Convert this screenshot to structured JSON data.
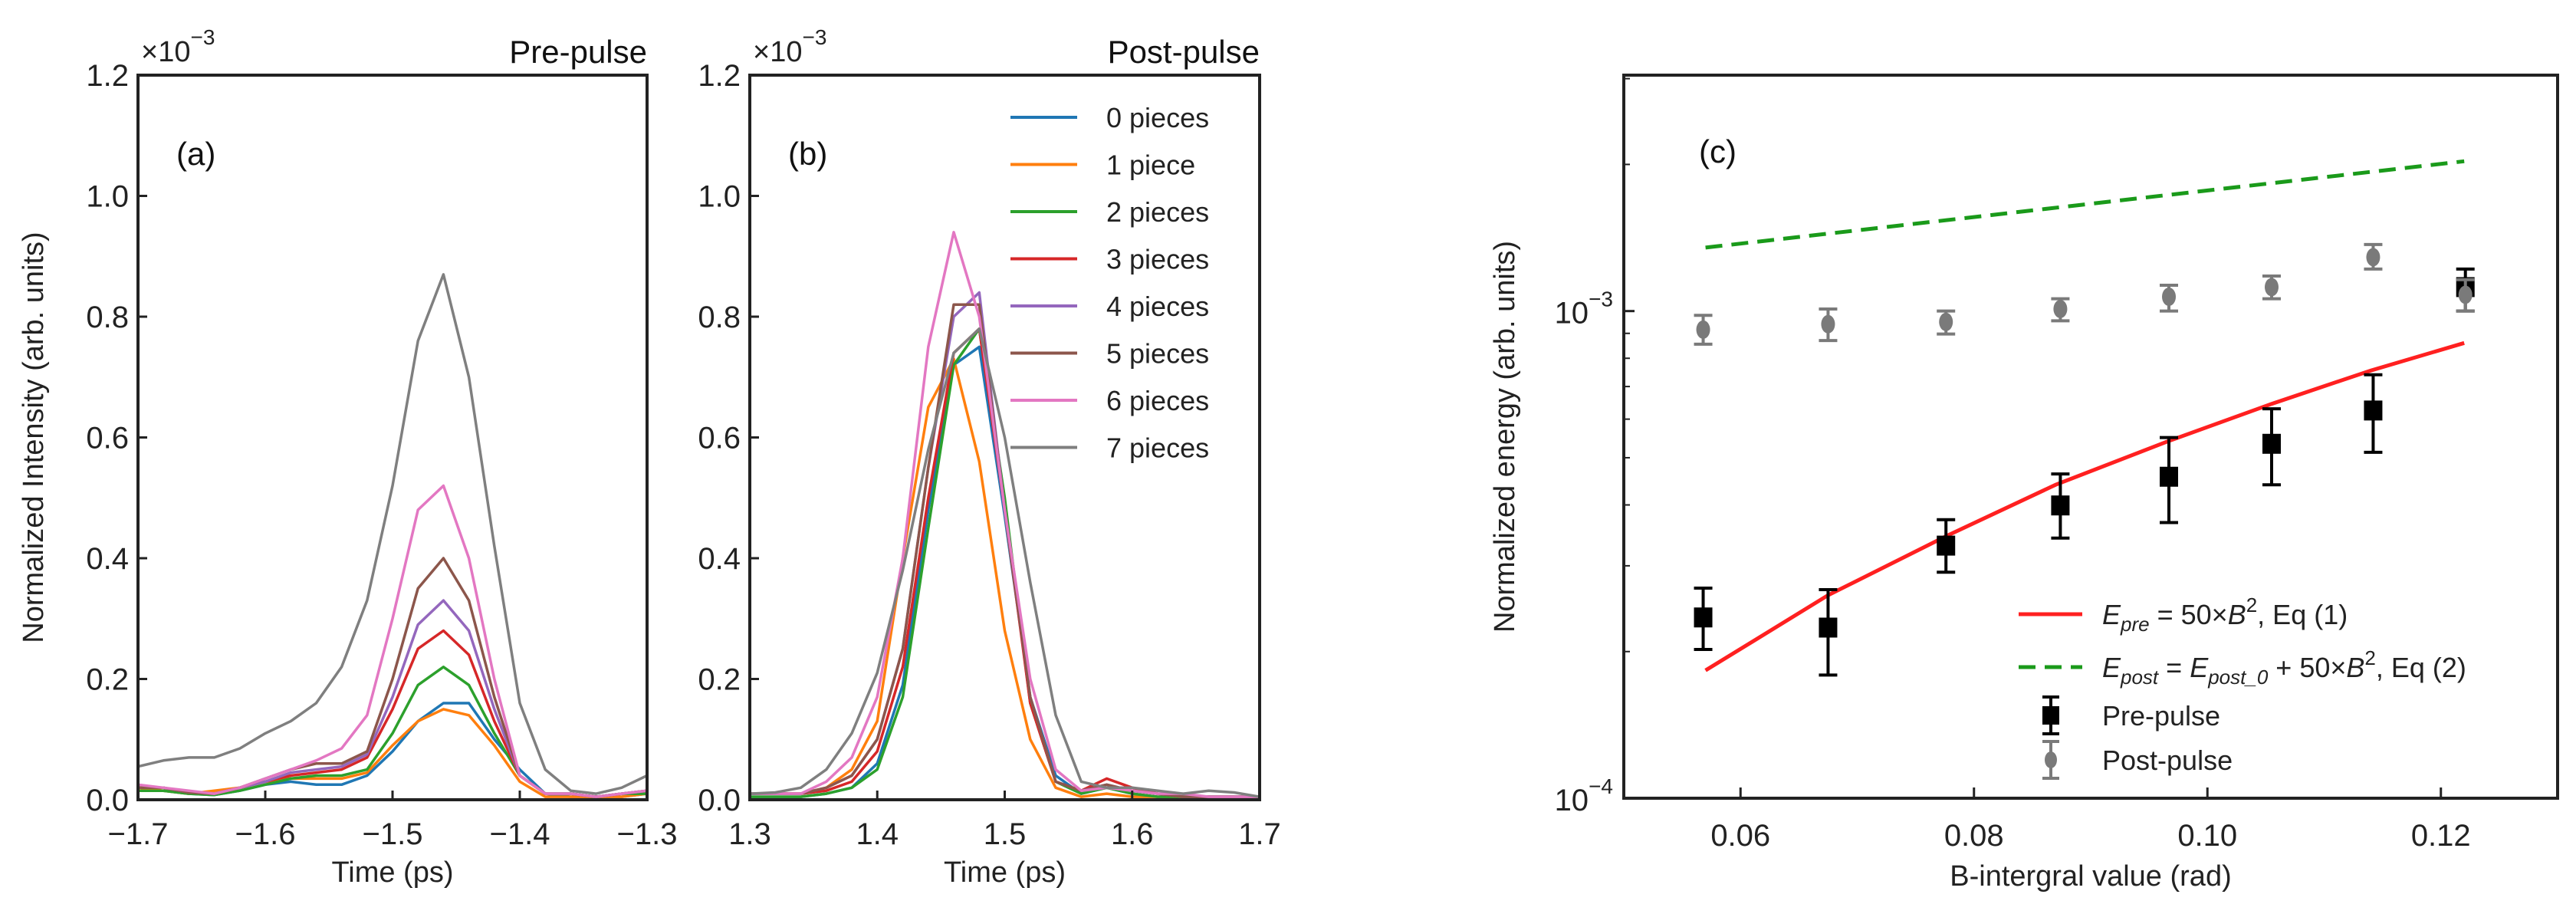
{
  "colors": {
    "blue": "#1f77b4",
    "orange": "#ff7f0e",
    "green": "#2ca02c",
    "red": "#d62728",
    "purple": "#9467bd",
    "brown": "#8c564b",
    "pink": "#e377c2",
    "gray": "#7f7f7f",
    "fit_red": "#ff2020",
    "fit_green": "#1a9a1a",
    "pre_marker": "#000000",
    "post_marker": "#7a7a7a"
  },
  "chart_data": [
    {
      "type": "line",
      "panel_label": "(a)",
      "title": "Pre-pulse",
      "scale_note": {
        "base": "×10",
        "exp": "−3"
      },
      "xlabel": "Time (ps)",
      "ylabel": "Normalized Intensity (arb. units)",
      "xlim": [
        -1.7,
        -1.3
      ],
      "ylim": [
        0,
        1.2
      ],
      "xticks": [
        "−1.7",
        "−1.6",
        "−1.5",
        "−1.4",
        "−1.3"
      ],
      "xtick_values": [
        -1.7,
        -1.6,
        -1.5,
        -1.4,
        -1.3
      ],
      "yticks": [
        "0.0",
        "0.2",
        "0.4",
        "0.6",
        "0.8",
        "1.0",
        "1.2"
      ],
      "ytick_values": [
        0,
        0.2,
        0.4,
        0.6,
        0.8,
        1.0,
        1.2
      ],
      "x": [
        -1.7,
        -1.68,
        -1.66,
        -1.64,
        -1.62,
        -1.6,
        -1.58,
        -1.56,
        -1.54,
        -1.52,
        -1.5,
        -1.48,
        -1.46,
        -1.44,
        -1.42,
        -1.4,
        -1.38,
        -1.36,
        -1.34,
        -1.32,
        -1.3
      ],
      "series": [
        {
          "name": "0 pieces",
          "color": "blue",
          "values": [
            0.015,
            0.015,
            0.01,
            0.008,
            0.015,
            0.025,
            0.03,
            0.025,
            0.025,
            0.04,
            0.08,
            0.13,
            0.16,
            0.16,
            0.1,
            0.05,
            0.01,
            0.005,
            0.005,
            0.005,
            0.01
          ]
        },
        {
          "name": "1 piece",
          "color": "orange",
          "values": [
            0.02,
            0.015,
            0.01,
            0.015,
            0.02,
            0.03,
            0.035,
            0.035,
            0.035,
            0.045,
            0.09,
            0.13,
            0.15,
            0.14,
            0.09,
            0.03,
            0.005,
            0.005,
            0.005,
            0.005,
            0.01
          ]
        },
        {
          "name": "2 pieces",
          "color": "green",
          "values": [
            0.015,
            0.015,
            0.01,
            0.008,
            0.015,
            0.025,
            0.035,
            0.04,
            0.04,
            0.05,
            0.11,
            0.19,
            0.22,
            0.19,
            0.11,
            0.04,
            0.01,
            0.01,
            0.005,
            0.01,
            0.01
          ]
        },
        {
          "name": "3 pieces",
          "color": "red",
          "values": [
            0.02,
            0.02,
            0.012,
            0.01,
            0.02,
            0.03,
            0.04,
            0.045,
            0.05,
            0.07,
            0.15,
            0.25,
            0.28,
            0.24,
            0.13,
            0.04,
            0.01,
            0.01,
            0.005,
            0.01,
            0.015
          ]
        },
        {
          "name": "4 pieces",
          "color": "purple",
          "values": [
            0.02,
            0.02,
            0.012,
            0.01,
            0.02,
            0.03,
            0.045,
            0.05,
            0.055,
            0.075,
            0.17,
            0.29,
            0.33,
            0.28,
            0.15,
            0.04,
            0.01,
            0.01,
            0.005,
            0.01,
            0.015
          ]
        },
        {
          "name": "5 pieces",
          "color": "brown",
          "values": [
            0.02,
            0.02,
            0.012,
            0.01,
            0.02,
            0.035,
            0.05,
            0.06,
            0.06,
            0.08,
            0.2,
            0.35,
            0.4,
            0.33,
            0.17,
            0.04,
            0.01,
            0.01,
            0.005,
            0.01,
            0.015
          ]
        },
        {
          "name": "6 pieces",
          "color": "pink",
          "values": [
            0.025,
            0.02,
            0.015,
            0.01,
            0.02,
            0.035,
            0.05,
            0.065,
            0.085,
            0.14,
            0.3,
            0.48,
            0.52,
            0.4,
            0.2,
            0.04,
            0.01,
            0.01,
            0.005,
            0.01,
            0.015
          ]
        },
        {
          "name": "7 pieces",
          "color": "gray",
          "values": [
            0.055,
            0.065,
            0.07,
            0.07,
            0.085,
            0.11,
            0.13,
            0.16,
            0.22,
            0.33,
            0.52,
            0.76,
            0.87,
            0.7,
            0.42,
            0.16,
            0.05,
            0.015,
            0.01,
            0.02,
            0.04
          ]
        }
      ]
    },
    {
      "type": "line",
      "panel_label": "(b)",
      "title": "Post-pulse",
      "scale_note": {
        "base": "×10",
        "exp": "−3"
      },
      "xlabel": "Time (ps)",
      "xlim": [
        1.3,
        1.7
      ],
      "ylim": [
        0,
        1.2
      ],
      "xticks": [
        "1.3",
        "1.4",
        "1.5",
        "1.6",
        "1.7"
      ],
      "xtick_values": [
        1.3,
        1.4,
        1.5,
        1.6,
        1.7
      ],
      "yticks": [
        "0.0",
        "0.2",
        "0.4",
        "0.6",
        "0.8",
        "1.0",
        "1.2"
      ],
      "ytick_values": [
        0,
        0.2,
        0.4,
        0.6,
        0.8,
        1.0,
        1.2
      ],
      "legend_position": "top-right",
      "x": [
        1.3,
        1.32,
        1.34,
        1.36,
        1.38,
        1.4,
        1.42,
        1.44,
        1.46,
        1.48,
        1.5,
        1.52,
        1.54,
        1.56,
        1.58,
        1.6,
        1.62,
        1.64,
        1.66,
        1.68,
        1.7
      ],
      "series": [
        {
          "name": "0 pieces",
          "color": "blue",
          "values": [
            0.005,
            0.005,
            0.005,
            0.01,
            0.02,
            0.06,
            0.19,
            0.48,
            0.72,
            0.75,
            0.47,
            0.17,
            0.04,
            0.01,
            0.02,
            0.01,
            0.005,
            0.005,
            0.005,
            0.005,
            0.005
          ]
        },
        {
          "name": "1 piece",
          "color": "orange",
          "values": [
            0.01,
            0.01,
            0.01,
            0.02,
            0.05,
            0.13,
            0.4,
            0.65,
            0.73,
            0.56,
            0.28,
            0.1,
            0.02,
            0.005,
            0.01,
            0.005,
            0.005,
            0.005,
            0.005,
            0.005,
            0.005
          ]
        },
        {
          "name": "2 pieces",
          "color": "green",
          "values": [
            0.005,
            0.005,
            0.005,
            0.01,
            0.02,
            0.05,
            0.17,
            0.45,
            0.72,
            0.78,
            0.5,
            0.16,
            0.03,
            0.01,
            0.02,
            0.01,
            0.005,
            0.005,
            0.005,
            0.005,
            0.005
          ]
        },
        {
          "name": "3 pieces",
          "color": "red",
          "values": [
            0.01,
            0.01,
            0.01,
            0.015,
            0.03,
            0.08,
            0.22,
            0.5,
            0.74,
            0.78,
            0.48,
            0.16,
            0.03,
            0.015,
            0.035,
            0.02,
            0.01,
            0.005,
            0.005,
            0.005,
            0.005
          ]
        },
        {
          "name": "4 pieces",
          "color": "purple",
          "values": [
            0.01,
            0.01,
            0.01,
            0.02,
            0.04,
            0.1,
            0.25,
            0.55,
            0.8,
            0.84,
            0.48,
            0.17,
            0.03,
            0.015,
            0.025,
            0.015,
            0.01,
            0.005,
            0.005,
            0.005,
            0.005
          ]
        },
        {
          "name": "5 pieces",
          "color": "brown",
          "values": [
            0.01,
            0.01,
            0.01,
            0.02,
            0.04,
            0.1,
            0.25,
            0.55,
            0.82,
            0.82,
            0.48,
            0.17,
            0.03,
            0.015,
            0.025,
            0.015,
            0.01,
            0.005,
            0.005,
            0.005,
            0.005
          ]
        },
        {
          "name": "6 pieces",
          "color": "pink",
          "values": [
            0.01,
            0.01,
            0.01,
            0.03,
            0.07,
            0.17,
            0.4,
            0.75,
            0.94,
            0.8,
            0.48,
            0.2,
            0.05,
            0.015,
            0.02,
            0.015,
            0.01,
            0.01,
            0.005,
            0.005,
            0.005
          ]
        },
        {
          "name": "7 pieces",
          "color": "gray",
          "values": [
            0.01,
            0.012,
            0.02,
            0.05,
            0.11,
            0.21,
            0.38,
            0.58,
            0.74,
            0.78,
            0.6,
            0.36,
            0.14,
            0.03,
            0.02,
            0.02,
            0.015,
            0.01,
            0.015,
            0.012,
            0.005
          ]
        }
      ]
    },
    {
      "type": "scatter",
      "panel_label": "(c)",
      "xlabel": "B-intergral value (rad)",
      "ylabel": "Normalized energy  (arb. units)",
      "xlim": [
        0.05,
        0.13
      ],
      "ylim": [
        0.0001,
        0.00305
      ],
      "yscale": "log",
      "xticks": [
        "0.06",
        "0.08",
        "0.10",
        "0.12"
      ],
      "xtick_values": [
        0.06,
        0.08,
        0.1,
        0.12
      ],
      "yticks": [
        {
          "base": "10",
          "exp": "−4",
          "value": 0.0001
        },
        {
          "base": "10",
          "exp": "−3",
          "value": 0.001
        }
      ],
      "legend_position": "bottom-right",
      "series": [
        {
          "name": "E_pre fit",
          "kind": "line",
          "color": "fit_red",
          "style": "solid",
          "legend": [
            {
              "t": "E",
              "i": true
            },
            {
              "t": "pre",
              "sub": true,
              "i": true
            },
            {
              "t": " = 50×"
            },
            {
              "t": "B",
              "i": true
            },
            {
              "t": "2",
              "sup": true
            },
            {
              "t": ", Eq (1)"
            }
          ],
          "x": [
            0.057,
            0.0675,
            0.0775,
            0.087,
            0.0965,
            0.1055,
            0.114,
            0.122
          ],
          "y": [
            0.000183,
            0.000261,
            0.000344,
            0.00044,
            0.000539,
            0.000645,
            0.000755,
            0.00086
          ]
        },
        {
          "name": "E_post fit",
          "kind": "line",
          "color": "fit_green",
          "style": "dashed",
          "legend": [
            {
              "t": "E",
              "i": true
            },
            {
              "t": "post",
              "sub": true,
              "i": true
            },
            {
              "t": " = "
            },
            {
              "t": "E",
              "i": true
            },
            {
              "t": "post_0",
              "sub": true,
              "i": true
            },
            {
              "t": " + 50×"
            },
            {
              "t": "B",
              "i": true
            },
            {
              "t": "2",
              "sup": true
            },
            {
              "t": ", Eq (2)"
            }
          ],
          "x": [
            0.057,
            0.122
          ],
          "y": [
            0.00135,
            0.00203
          ]
        },
        {
          "name": "Pre-pulse",
          "kind": "errorbar",
          "marker": "square",
          "color": "pre_marker",
          "legend": [
            {
              "t": "Pre-pulse"
            }
          ],
          "x": [
            0.0568,
            0.0675,
            0.0776,
            0.0874,
            0.0967,
            0.1055,
            0.1142,
            0.1221
          ],
          "y": [
            0.000235,
            0.000224,
            0.00033,
            0.000399,
            0.000457,
            0.000534,
            0.000625,
            0.00112
          ],
          "y_low": [
            0.000202,
            0.000179,
            0.000291,
            0.000342,
            0.000368,
            0.00044,
            0.000513,
            0.001
          ],
          "y_high": [
            0.00027,
            0.000268,
            0.000373,
            0.000463,
            0.00055,
            0.00063,
            0.00074,
            0.00122
          ]
        },
        {
          "name": "Post-pulse",
          "kind": "errorbar",
          "marker": "circle",
          "color": "post_marker",
          "legend": [
            {
              "t": "Post-pulse"
            }
          ],
          "x": [
            0.0568,
            0.0675,
            0.0776,
            0.0874,
            0.0967,
            0.1055,
            0.1142,
            0.1221
          ],
          "y": [
            0.000916,
            0.00094,
            0.00095,
            0.00101,
            0.00107,
            0.00112,
            0.00129,
            0.00108
          ],
          "y_low": [
            0.000855,
            0.00087,
            0.000897,
            0.000955,
            0.001,
            0.00106,
            0.00122,
            0.001
          ],
          "y_high": [
            0.00098,
            0.00101,
            0.001,
            0.00106,
            0.00113,
            0.00118,
            0.00137,
            0.00116
          ]
        }
      ]
    }
  ]
}
